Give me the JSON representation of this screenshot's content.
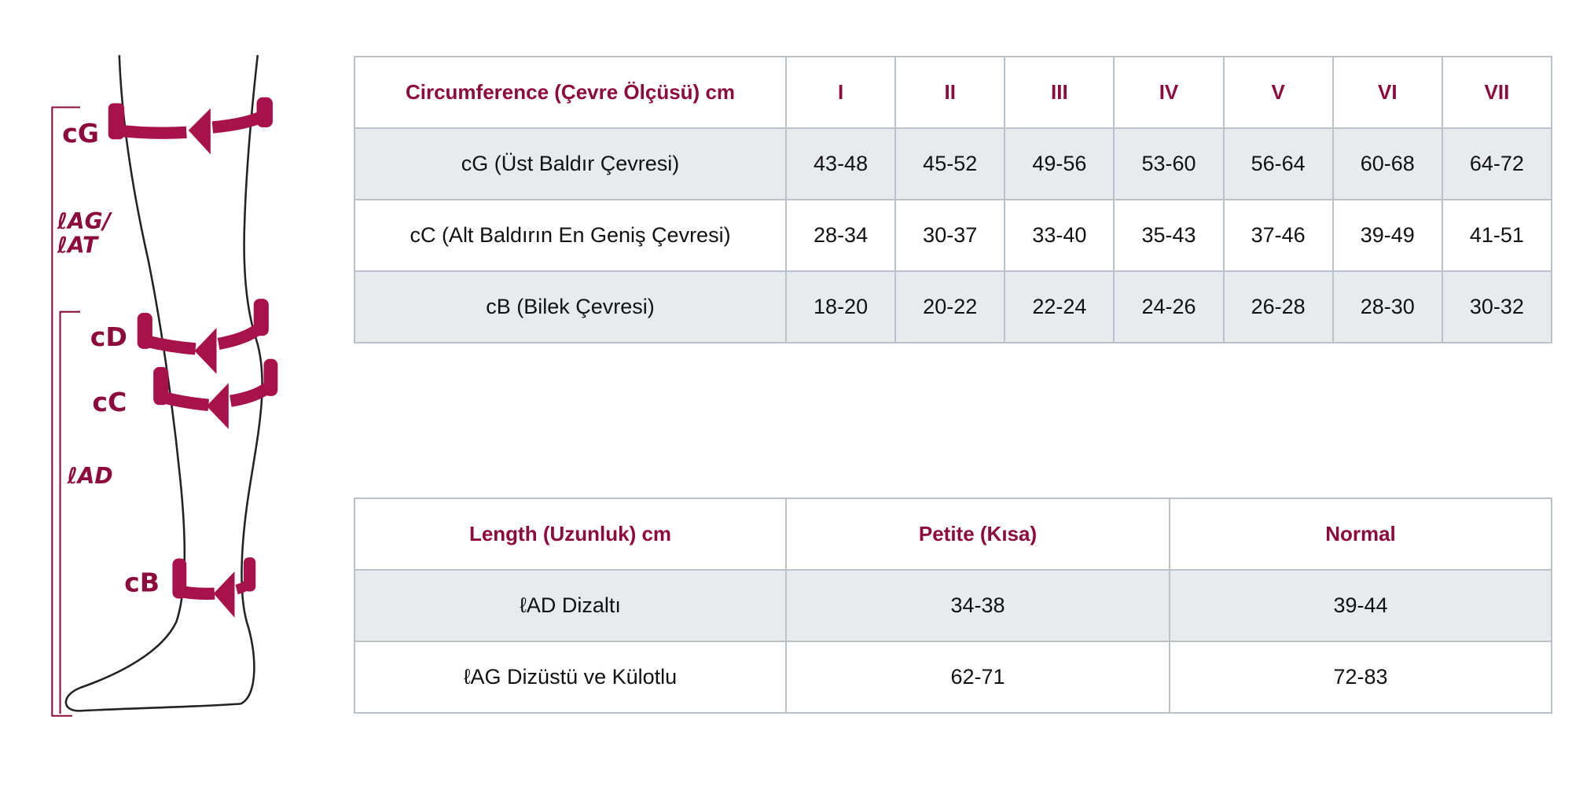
{
  "diagram": {
    "labels": [
      "cG",
      "ℓAG/",
      "ℓAT",
      "cD",
      "cC",
      "ℓAD",
      "cB"
    ],
    "accent_color": "#8d0a3c"
  },
  "circumference_table": {
    "headers": [
      "Circumference (Çevre Ölçüsü) cm",
      "I",
      "II",
      "III",
      "IV",
      "V",
      "VI",
      "VII"
    ],
    "rows": [
      {
        "label": "cG (Üst Baldır Çevresi)",
        "values": [
          "43-48",
          "45-52",
          "49-56",
          "53-60",
          "56-64",
          "60-68",
          "64-72"
        ]
      },
      {
        "label": "cC (Alt Baldırın En Geniş Çevresi)",
        "values": [
          "28-34",
          "30-37",
          "33-40",
          "35-43",
          "37-46",
          "39-49",
          "41-51"
        ]
      },
      {
        "label": "cB (Bilek Çevresi)",
        "values": [
          "18-20",
          "20-22",
          "22-24",
          "24-26",
          "26-28",
          "28-30",
          "30-32"
        ]
      }
    ]
  },
  "length_table": {
    "headers": [
      "Length (Uzunluk) cm",
      "Petite (Kısa)",
      "Normal"
    ],
    "rows": [
      {
        "label": "ℓAD Dizaltı",
        "values": [
          "34-38",
          "39-44"
        ]
      },
      {
        "label": "ℓAG Dizüstü ve Külotlu",
        "values": [
          "62-71",
          "72-83"
        ]
      }
    ]
  },
  "colors": {
    "header_text": "#8d0a3c",
    "border": "#b9c2ca",
    "row_gray": "#e8ebee"
  }
}
